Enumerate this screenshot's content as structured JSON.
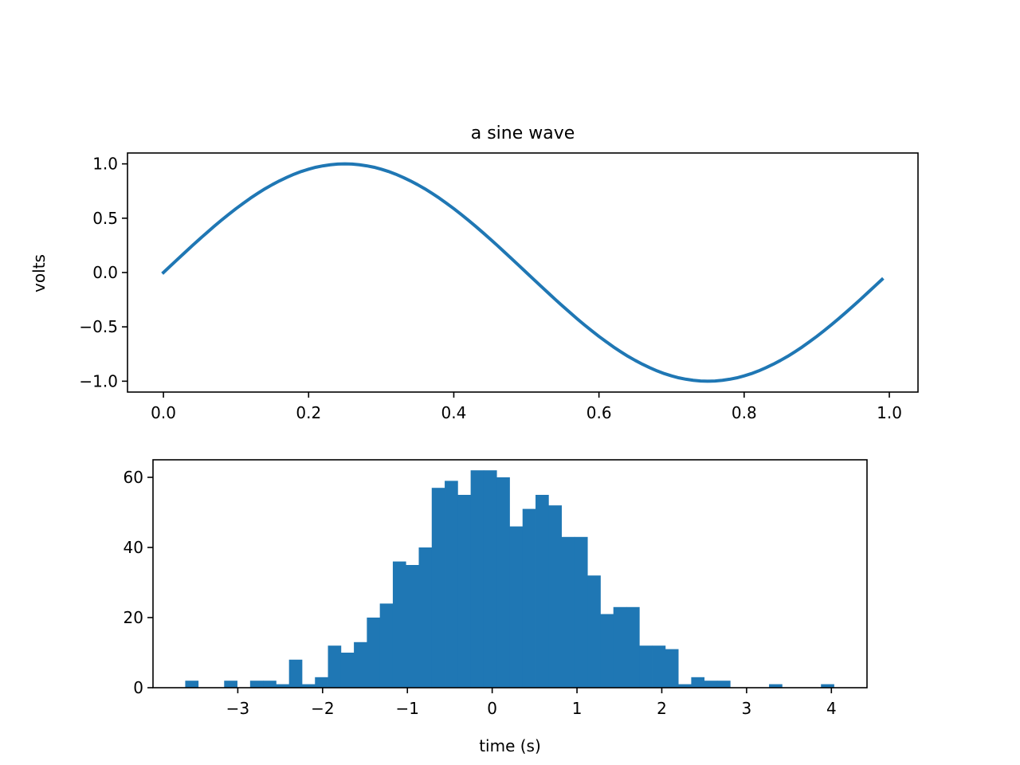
{
  "chart_data": [
    {
      "type": "line",
      "title": "a sine wave",
      "xlabel": "",
      "ylabel": "volts",
      "xlim": [
        -0.0495,
        1.0395
      ],
      "ylim": [
        -1.1,
        1.1
      ],
      "xticks": [
        "0.0",
        "0.2",
        "0.4",
        "0.6",
        "0.8",
        "1.0"
      ],
      "xtick_values": [
        0,
        0.2,
        0.4,
        0.6,
        0.8,
        1.0
      ],
      "yticks": [
        "−1.0",
        "−0.5",
        "0.0",
        "0.5",
        "1.0"
      ],
      "ytick_values": [
        -1,
        -0.5,
        0,
        0.5,
        1
      ],
      "grid": false,
      "color": "#1f77b4",
      "x_start": 0,
      "x_step": 0.01,
      "y": [
        0,
        0.063,
        0.125,
        0.187,
        0.249,
        0.309,
        0.368,
        0.426,
        0.482,
        0.536,
        0.588,
        0.637,
        0.685,
        0.729,
        0.771,
        0.809,
        0.844,
        0.876,
        0.905,
        0.93,
        0.951,
        0.969,
        0.982,
        0.992,
        0.998,
        1,
        0.998,
        0.992,
        0.982,
        0.969,
        0.951,
        0.93,
        0.905,
        0.876,
        0.844,
        0.809,
        0.771,
        0.729,
        0.685,
        0.637,
        0.588,
        0.536,
        0.482,
        0.426,
        0.368,
        0.309,
        0.249,
        0.187,
        0.125,
        0.063,
        0,
        -0.063,
        -0.125,
        -0.187,
        -0.249,
        -0.309,
        -0.368,
        -0.426,
        -0.482,
        -0.536,
        -0.588,
        -0.637,
        -0.685,
        -0.729,
        -0.771,
        -0.809,
        -0.844,
        -0.876,
        -0.905,
        -0.93,
        -0.951,
        -0.969,
        -0.982,
        -0.992,
        -0.998,
        -1,
        -0.998,
        -0.992,
        -0.982,
        -0.969,
        -0.951,
        -0.93,
        -0.905,
        -0.876,
        -0.844,
        -0.809,
        -0.771,
        -0.729,
        -0.685,
        -0.637,
        -0.588,
        -0.536,
        -0.482,
        -0.426,
        -0.368,
        -0.309,
        -0.249,
        -0.187,
        -0.125,
        -0.063
      ]
    },
    {
      "type": "bar",
      "subtype": "histogram",
      "title": "",
      "xlabel": "time (s)",
      "ylabel": "",
      "xlim": [
        -4.0,
        4.42
      ],
      "ylim": [
        0,
        65
      ],
      "xticks": [
        "−3",
        "−2",
        "−1",
        "0",
        "1",
        "2",
        "3",
        "4"
      ],
      "xtick_values": [
        -3,
        -2,
        -1,
        0,
        1,
        2,
        3,
        4
      ],
      "yticks": [
        "0",
        "20",
        "40",
        "60"
      ],
      "ytick_values": [
        0,
        20,
        40,
        60
      ],
      "grid": false,
      "color": "#1f77b4",
      "bin_start": -3.62,
      "bin_end": 4.03,
      "counts": [
        2,
        0,
        0,
        2,
        0,
        2,
        2,
        1,
        8,
        1,
        3,
        12,
        10,
        13,
        20,
        24,
        36,
        35,
        40,
        57,
        59,
        55,
        62,
        62,
        60,
        46,
        51,
        55,
        52,
        43,
        43,
        32,
        21,
        23,
        23,
        12,
        12,
        11,
        1,
        3,
        2,
        2,
        0,
        0,
        0,
        1,
        0,
        0,
        0,
        1
      ]
    }
  ]
}
